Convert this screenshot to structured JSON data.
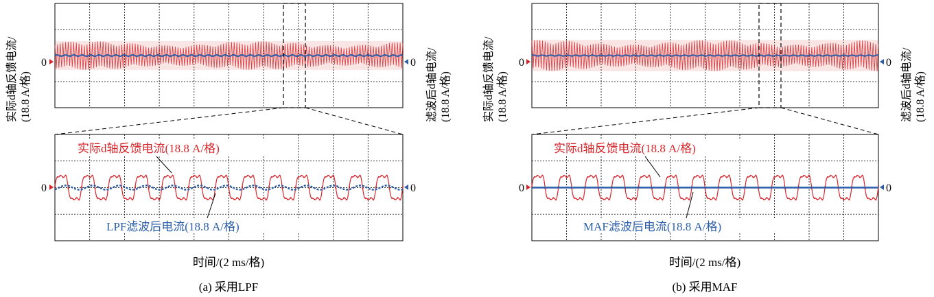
{
  "figure": {
    "panels": [
      {
        "caption": "(a) 采用LPF",
        "time_axis_label": "时间/(2 ms/格)",
        "left_axis_label_line1": "实际d轴反馈电流/",
        "left_axis_label_line2": "(18.8 A/格)",
        "right_axis_label_line1": "滤波后d轴电流/",
        "right_axis_label_line2": "(18.8 A/格)",
        "zero_label": "0",
        "zoom_feedback_label": "实际d轴反馈电流(18.8 A/格)",
        "zoom_filtered_label": "LPF滤波后电流(18.8 A/格)"
      },
      {
        "caption": "(b) 采用MAF",
        "time_axis_label": "时间/(2 ms/格)",
        "left_axis_label_line1": "实际d轴反馈电流/",
        "left_axis_label_line2": "(18.8 A/格)",
        "right_axis_label_line1": "滤波后d轴电流/",
        "right_axis_label_line2": "(18.8 A/格)",
        "zero_label": "0",
        "zoom_feedback_label": "实际d轴反馈电流(18.8 A/格)",
        "zoom_filtered_label": "MAF滤波后电流(18.8 A/格)"
      }
    ]
  },
  "chart_data": [
    {
      "type": "line",
      "panel": "a-overview",
      "grid": true,
      "divisions": {
        "x": 10,
        "y": 4
      },
      "y_unit": "18.8 A/格",
      "x_unit": "2 ms/格",
      "series": [
        {
          "name": "实际d轴反馈电流",
          "color": "#d7262b",
          "amplitude_div": 0.55,
          "mean_div": 0.0
        },
        {
          "name": "滤波后d轴电流",
          "color": "#2a5ca8",
          "amplitude_div": 0.03,
          "mean_div": 0.0
        }
      ]
    },
    {
      "type": "line",
      "panel": "a-zoom",
      "grid": true,
      "divisions": {
        "x": 10,
        "y": 4
      },
      "cycles": 13,
      "series": [
        {
          "name": "实际d轴反馈电流",
          "color": "#d7262b",
          "amplitude_div": 0.65,
          "mean_div": 0.0
        },
        {
          "name": "LPF滤波后电流",
          "color": "#2a5ca8",
          "amplitude_div": 0.08,
          "mean_div": 0.0
        }
      ]
    },
    {
      "type": "line",
      "panel": "b-overview",
      "grid": true,
      "divisions": {
        "x": 10,
        "y": 4
      },
      "series": [
        {
          "name": "实际d轴反馈电流",
          "color": "#d7262b",
          "amplitude_div": 0.6,
          "mean_div": 0.0
        },
        {
          "name": "滤波后d轴电流",
          "color": "#2a5ca8",
          "amplitude_div": 0.02,
          "mean_div": 0.0
        }
      ]
    },
    {
      "type": "line",
      "panel": "b-zoom",
      "grid": true,
      "divisions": {
        "x": 10,
        "y": 4
      },
      "cycles": 13,
      "series": [
        {
          "name": "实际d轴反馈电流",
          "color": "#d7262b",
          "amplitude_div": 0.65,
          "mean_div": 0.0
        },
        {
          "name": "MAF滤波后电流",
          "color": "#2a5ca8",
          "amplitude_div": 0.0,
          "mean_div": 0.0
        }
      ]
    }
  ],
  "colors": {
    "feedback": "#d7262b",
    "filtered": "#2a5ca8",
    "grid": "#000000"
  }
}
